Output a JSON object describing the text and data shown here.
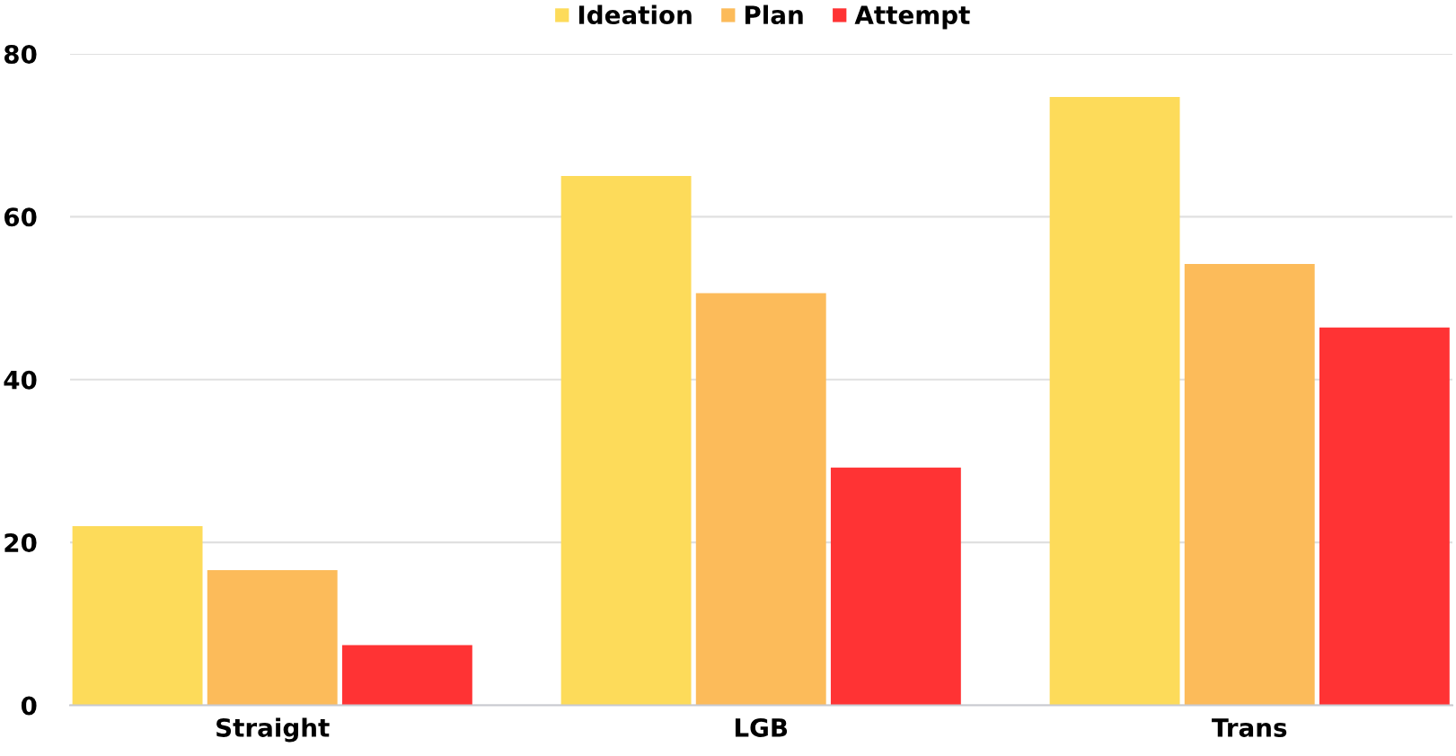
{
  "chart_data": {
    "type": "bar",
    "categories": [
      "Straight",
      "LGB",
      "Trans"
    ],
    "series": [
      {
        "name": "Ideation",
        "color": "#fddb5a",
        "values": [
          22,
          65,
          74.7
        ]
      },
      {
        "name": "Plan",
        "color": "#fcbb5a",
        "values": [
          16.6,
          50.6,
          54.2
        ]
      },
      {
        "name": "Attempt",
        "color": "#ff3334",
        "values": [
          7.4,
          29.2,
          46.4
        ]
      }
    ],
    "ylim": [
      0,
      80
    ],
    "yticks": [
      0,
      20,
      40,
      60,
      80
    ],
    "grid": "y",
    "legend": "top"
  }
}
